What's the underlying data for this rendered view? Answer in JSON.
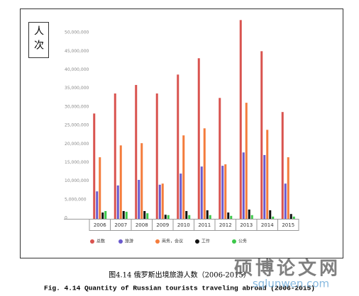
{
  "chart_data": {
    "type": "bar",
    "ylabel": "人次",
    "categories": [
      "2006",
      "2007",
      "2008",
      "2009",
      "2010",
      "2011",
      "2012",
      "2013",
      "2014",
      "2015"
    ],
    "series": [
      {
        "name": "总数",
        "color": "#d9534f",
        "values": [
          28400000,
          33800000,
          36100000,
          33800000,
          38900000,
          43300000,
          32600000,
          53600000,
          45200000,
          28800000
        ]
      },
      {
        "name": "旅游",
        "color": "#6a5acd",
        "values": [
          7400000,
          9000000,
          10500000,
          9200000,
          12200000,
          14100000,
          14300000,
          17900000,
          17200000,
          9500000
        ]
      },
      {
        "name": "商务，会议",
        "color": "#f47c3c",
        "values": [
          16600000,
          19800000,
          20400000,
          9500000,
          22500000,
          24400000,
          14700000,
          31300000,
          24000000,
          16600000
        ]
      },
      {
        "name": "工作",
        "color": "#111111",
        "values": [
          1700000,
          2100000,
          2100000,
          1100000,
          2100000,
          2300000,
          1700000,
          2500000,
          2300000,
          1300000
        ]
      },
      {
        "name": "公务",
        "color": "#3cc84a",
        "values": [
          2100000,
          1900000,
          1500000,
          1000000,
          1000000,
          1000000,
          800000,
          1000000,
          600000,
          600000
        ]
      }
    ],
    "ylim": [
      0,
      55000000
    ],
    "yticks": [
      0,
      {
        "value": 5000000,
        "label": "5,000,000"
      },
      {
        "value": 10000000,
        "label": "10,000,000"
      },
      {
        "value": 15000000,
        "label": "15,000,000"
      },
      {
        "value": 20000000,
        "label": "20,000,000"
      },
      {
        "value": 25000000,
        "label": "25,000,000"
      },
      {
        "value": 30000000,
        "label": "30,000,000"
      },
      {
        "value": 35000000,
        "label": "35,000,000"
      },
      {
        "value": 40000000,
        "label": "40,000,000"
      },
      {
        "value": 45000000,
        "label": "45,000,000"
      },
      {
        "value": 50000000,
        "label": "50,000,000"
      }
    ],
    "legend": "bottom",
    "caption": "图4.14 俄罗斯出境旅游人数（2006-2015）",
    "caption_en": "Fig. 4.14 Quantity of Russian tourists traveling abroad (2006-2015)"
  },
  "watermark": {
    "title": "硕博论文网",
    "url": "sqlunwen.com"
  }
}
